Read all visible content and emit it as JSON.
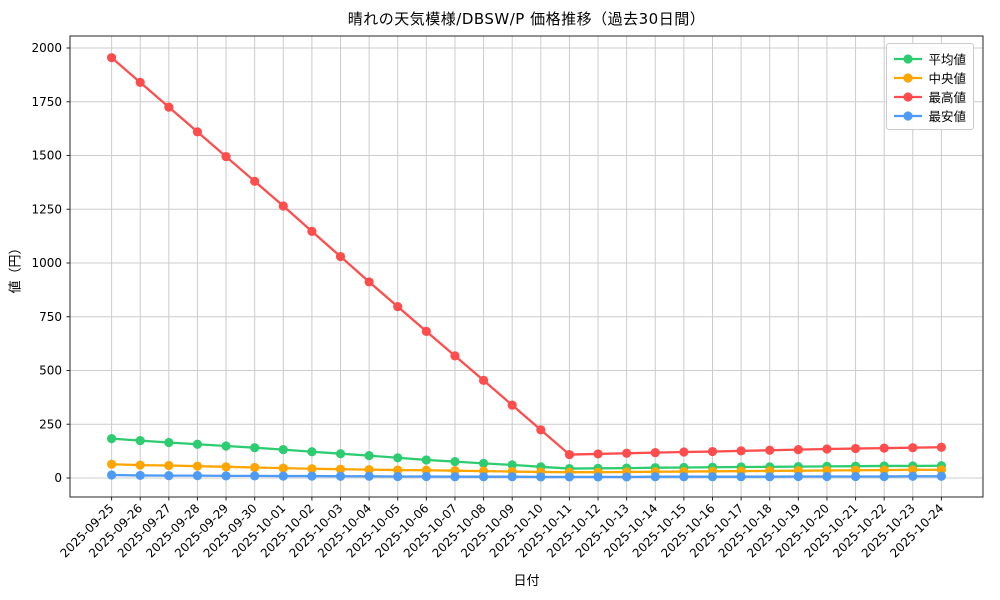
{
  "title": "晴れの天気模様/DBSW/P 価格推移（過去30日間）",
  "chart_data": {
    "type": "line",
    "title": "晴れの天気模様/DBSW/P 価格推移（過去30日間）",
    "xlabel": "日付",
    "ylabel": "値（円）",
    "grid": true,
    "legend_position": "top-right",
    "ylim": [
      -93,
      2053
    ],
    "yticks": [
      0,
      250,
      500,
      750,
      1000,
      1250,
      1500,
      1750,
      2000
    ],
    "x": [
      "2025-09-25",
      "2025-09-26",
      "2025-09-27",
      "2025-09-28",
      "2025-09-29",
      "2025-09-30",
      "2025-10-01",
      "2025-10-02",
      "2025-10-03",
      "2025-10-04",
      "2025-10-05",
      "2025-10-06",
      "2025-10-07",
      "2025-10-08",
      "2025-10-09",
      "2025-10-10",
      "2025-10-11",
      "2025-10-12",
      "2025-10-13",
      "2025-10-14",
      "2025-10-15",
      "2025-10-16",
      "2025-10-17",
      "2025-10-18",
      "2025-10-19",
      "2025-10-20",
      "2025-10-21",
      "2025-10-22",
      "2025-10-23",
      "2025-10-24"
    ],
    "series": [
      {
        "name": "平均値",
        "color": "#2ecc71",
        "values": [
          183,
          174,
          165,
          157,
          149,
          141,
          132,
          122,
          113,
          104,
          94,
          84,
          76,
          68,
          61,
          52,
          44,
          45,
          46,
          48,
          49,
          50,
          51,
          52,
          53,
          54,
          55,
          56,
          56,
          57
        ]
      },
      {
        "name": "中央値",
        "color": "#ffa502",
        "values": [
          64,
          60,
          58,
          55,
          52,
          49,
          46,
          43,
          41,
          39,
          37,
          36,
          34,
          32,
          30,
          28,
          27,
          27,
          28,
          29,
          30,
          31,
          32,
          33,
          34,
          35,
          36,
          37,
          38,
          38
        ]
      },
      {
        "name": "最高値",
        "color": "#ff4d4d",
        "values": [
          1955,
          1840,
          1725,
          1610,
          1495,
          1380,
          1265,
          1147,
          1030,
          912,
          797,
          682,
          568,
          454,
          339,
          224,
          109,
          112,
          115,
          118,
          121,
          123,
          126,
          129,
          132,
          135,
          137,
          139,
          141,
          143
        ]
      },
      {
        "name": "最安値",
        "color": "#4d9bf5",
        "values": [
          14,
          12,
          11,
          11,
          10,
          10,
          9,
          9,
          8,
          8,
          7,
          7,
          6,
          6,
          6,
          5,
          5,
          5,
          5,
          6,
          6,
          6,
          6,
          6,
          7,
          7,
          7,
          7,
          8,
          8
        ]
      }
    ],
    "colors": {
      "grid": "#cccccc",
      "spine": "#262626",
      "tick_text": "#000000"
    }
  }
}
